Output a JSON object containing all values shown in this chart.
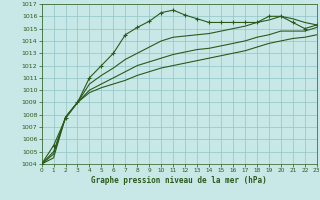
{
  "title": "Graphe pression niveau de la mer (hPa)",
  "bg_color": "#c8e8e8",
  "grid_color": "#90c4c4",
  "line_color": "#2a5a1a",
  "ylim": [
    1004,
    1017
  ],
  "xlim": [
    0,
    23
  ],
  "yticks": [
    1004,
    1005,
    1006,
    1007,
    1008,
    1009,
    1010,
    1011,
    1012,
    1013,
    1014,
    1015,
    1016,
    1017
  ],
  "xticks": [
    0,
    1,
    2,
    3,
    4,
    5,
    6,
    7,
    8,
    9,
    10,
    11,
    12,
    13,
    14,
    15,
    16,
    17,
    18,
    19,
    20,
    21,
    22,
    23
  ],
  "s_marker": [
    1004.0,
    1005.5,
    1007.7,
    1009.0,
    1011.0,
    1012.0,
    1013.0,
    1014.5,
    1015.1,
    1015.6,
    1016.3,
    1016.5,
    1016.1,
    1015.8,
    1015.5,
    1015.5,
    1015.5,
    1015.5,
    1015.5,
    1016.0,
    1016.0,
    1015.5,
    1015.0,
    1015.3
  ],
  "s_top": [
    1004.0,
    1005.0,
    1007.8,
    1009.0,
    1010.5,
    1011.2,
    1011.8,
    1012.5,
    1013.0,
    1013.5,
    1014.0,
    1014.3,
    1014.4,
    1014.5,
    1014.6,
    1014.8,
    1015.0,
    1015.2,
    1015.5,
    1015.7,
    1016.0,
    1015.8,
    1015.5,
    1015.3
  ],
  "s_mid": [
    1004.0,
    1004.8,
    1007.8,
    1009.0,
    1010.0,
    1010.5,
    1011.0,
    1011.5,
    1012.0,
    1012.3,
    1012.6,
    1012.9,
    1013.1,
    1013.3,
    1013.4,
    1013.6,
    1013.8,
    1014.0,
    1014.3,
    1014.5,
    1014.8,
    1014.8,
    1014.8,
    1015.1
  ],
  "s_bot": [
    1004.0,
    1004.5,
    1007.8,
    1009.0,
    1009.8,
    1010.2,
    1010.5,
    1010.8,
    1011.2,
    1011.5,
    1011.8,
    1012.0,
    1012.2,
    1012.4,
    1012.6,
    1012.8,
    1013.0,
    1013.2,
    1013.5,
    1013.8,
    1014.0,
    1014.2,
    1014.3,
    1014.5
  ]
}
